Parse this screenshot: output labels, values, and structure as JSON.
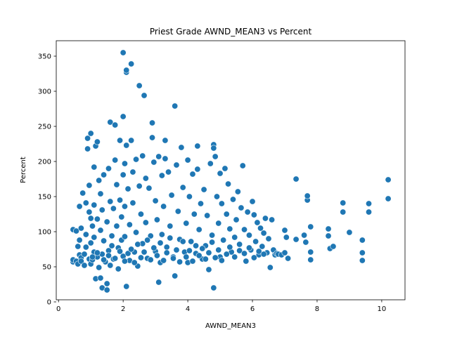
{
  "chart_data": {
    "type": "scatter",
    "title": "Priest Grade AWND_MEAN3 vs Percent",
    "xlabel": "AWND_MEAN3",
    "ylabel": "Percent",
    "xlim": [
      -0.07,
      10.72
    ],
    "ylim": [
      3,
      372
    ],
    "xticks": [
      0,
      2,
      4,
      6,
      8,
      10
    ],
    "yticks": [
      0,
      50,
      100,
      150,
      200,
      250,
      300,
      350
    ],
    "grid": false,
    "legend": "none",
    "marker_color": "#1f77b4",
    "marker_edge": "#ffffff",
    "series": [
      {
        "points": [
          [
            0.45,
            57
          ],
          [
            0.45,
            60
          ],
          [
            0.45,
            103
          ],
          [
            0.55,
            58
          ],
          [
            0.55,
            101
          ],
          [
            0.6,
            54
          ],
          [
            0.6,
            79
          ],
          [
            0.65,
            67
          ],
          [
            0.65,
            88
          ],
          [
            0.65,
            136
          ],
          [
            0.7,
            105
          ],
          [
            0.7,
            63
          ],
          [
            0.7,
            58
          ],
          [
            0.75,
            155
          ],
          [
            0.8,
            68
          ],
          [
            0.8,
            52
          ],
          [
            0.85,
            96
          ],
          [
            0.85,
            78
          ],
          [
            0.85,
            141
          ],
          [
            0.9,
            218
          ],
          [
            0.9,
            233
          ],
          [
            0.95,
            128
          ],
          [
            0.95,
            166
          ],
          [
            0.95,
            61
          ],
          [
            1.0,
            240
          ],
          [
            1.0,
            119
          ],
          [
            1.0,
            84
          ],
          [
            1.0,
            54
          ],
          [
            1.05,
            108
          ],
          [
            1.05,
            60
          ],
          [
            1.1,
            192
          ],
          [
            1.1,
            138
          ],
          [
            1.1,
            92
          ],
          [
            1.1,
            71
          ],
          [
            1.15,
            33
          ],
          [
            1.15,
            222
          ],
          [
            1.2,
            228
          ],
          [
            1.2,
            64
          ],
          [
            1.2,
            118
          ],
          [
            1.25,
            173
          ],
          [
            1.25,
            49
          ],
          [
            1.3,
            34
          ],
          [
            1.3,
            154
          ],
          [
            1.3,
            102
          ],
          [
            1.35,
            20
          ],
          [
            1.35,
            131
          ],
          [
            1.35,
            68
          ],
          [
            1.4,
            181
          ],
          [
            1.4,
            87
          ],
          [
            1.45,
            57
          ],
          [
            1.5,
            17
          ],
          [
            1.5,
            26
          ],
          [
            1.5,
            114
          ],
          [
            1.55,
            190
          ],
          [
            1.55,
            73
          ],
          [
            1.6,
            256
          ],
          [
            1.6,
            143
          ],
          [
            1.6,
            52
          ],
          [
            1.65,
            94
          ],
          [
            1.7,
            133
          ],
          [
            1.7,
            61
          ],
          [
            1.75,
            252
          ],
          [
            1.75,
            202
          ],
          [
            1.8,
            167
          ],
          [
            1.8,
            108
          ],
          [
            1.85,
            77
          ],
          [
            1.85,
            47
          ],
          [
            1.9,
            230
          ],
          [
            1.9,
            145
          ],
          [
            1.95,
            121
          ],
          [
            1.95,
            88
          ],
          [
            2.0,
            355
          ],
          [
            2.0,
            264
          ],
          [
            2.0,
            181
          ],
          [
            2.0,
            65
          ],
          [
            2.05,
            197
          ],
          [
            2.05,
            136
          ],
          [
            2.05,
            93
          ],
          [
            2.1,
            22
          ],
          [
            2.1,
            327
          ],
          [
            2.1,
            330
          ],
          [
            2.1,
            223
          ],
          [
            2.15,
            161
          ],
          [
            2.2,
            110
          ],
          [
            2.2,
            59
          ],
          [
            2.25,
            339
          ],
          [
            2.25,
            230
          ],
          [
            2.3,
            185
          ],
          [
            2.3,
            141
          ],
          [
            2.35,
            71
          ],
          [
            2.4,
            203
          ],
          [
            2.4,
            99
          ],
          [
            2.45,
            51
          ],
          [
            2.5,
            308
          ],
          [
            2.5,
            165
          ],
          [
            2.55,
            125
          ],
          [
            2.6,
            208
          ],
          [
            2.6,
            83
          ],
          [
            2.65,
            294
          ],
          [
            2.7,
            176
          ],
          [
            2.7,
            113
          ],
          [
            2.75,
            62
          ],
          [
            2.8,
            162
          ],
          [
            2.85,
            94
          ],
          [
            2.9,
            255
          ],
          [
            2.9,
            234
          ],
          [
            2.95,
            199
          ],
          [
            3.0,
            144
          ],
          [
            3.0,
            72
          ],
          [
            3.05,
            117
          ],
          [
            3.1,
            28
          ],
          [
            3.1,
            207
          ],
          [
            3.15,
            56
          ],
          [
            3.2,
            180
          ],
          [
            3.2,
            96
          ],
          [
            3.25,
            136
          ],
          [
            3.3,
            230
          ],
          [
            3.3,
            204
          ],
          [
            3.35,
            78
          ],
          [
            3.4,
            185
          ],
          [
            3.45,
            108
          ],
          [
            3.5,
            152
          ],
          [
            3.55,
            64
          ],
          [
            3.6,
            279
          ],
          [
            3.6,
            37
          ],
          [
            3.65,
            195
          ],
          [
            3.7,
            129
          ],
          [
            3.75,
            89
          ],
          [
            3.8,
            220
          ],
          [
            3.85,
            163
          ],
          [
            3.9,
            71
          ],
          [
            3.95,
            112
          ],
          [
            4.0,
            202
          ],
          [
            4.0,
            56
          ],
          [
            4.05,
            150
          ],
          [
            4.1,
            86
          ],
          [
            4.15,
            182
          ],
          [
            4.2,
            125
          ],
          [
            4.25,
            69
          ],
          [
            4.3,
            222
          ],
          [
            4.3,
            189
          ],
          [
            4.35,
            103
          ],
          [
            4.4,
            140
          ],
          [
            4.45,
            61
          ],
          [
            4.5,
            160
          ],
          [
            4.55,
            80
          ],
          [
            4.6,
            123
          ],
          [
            4.65,
            46
          ],
          [
            4.7,
            197
          ],
          [
            4.75,
            95
          ],
          [
            4.8,
            20
          ],
          [
            4.8,
            224
          ],
          [
            4.8,
            219
          ],
          [
            4.85,
            207
          ],
          [
            4.9,
            150
          ],
          [
            4.95,
            112
          ],
          [
            5.0,
            183
          ],
          [
            5.0,
            64
          ],
          [
            5.05,
            140
          ],
          [
            5.1,
            88
          ],
          [
            5.15,
            190
          ],
          [
            5.2,
            125
          ],
          [
            5.25,
            168
          ],
          [
            5.3,
            104
          ],
          [
            5.35,
            71
          ],
          [
            5.4,
            146
          ],
          [
            5.45,
            92
          ],
          [
            5.5,
            117
          ],
          [
            5.55,
            157
          ],
          [
            5.6,
            82
          ],
          [
            5.65,
            134
          ],
          [
            5.7,
            194
          ],
          [
            5.75,
            103
          ],
          [
            5.8,
            58
          ],
          [
            5.85,
            128
          ],
          [
            5.9,
            95
          ],
          [
            5.95,
            74
          ],
          [
            6.0,
            143
          ],
          [
            6.05,
            124
          ],
          [
            6.1,
            86
          ],
          [
            6.15,
            113
          ],
          [
            6.2,
            67
          ],
          [
            6.25,
            105
          ],
          [
            6.3,
            79
          ],
          [
            6.35,
            98
          ],
          [
            6.4,
            119
          ],
          [
            6.45,
            70
          ],
          [
            6.5,
            90
          ],
          [
            6.55,
            49
          ],
          [
            6.6,
            117
          ],
          [
            6.65,
            74
          ],
          [
            6.7,
            67
          ],
          [
            6.75,
            69
          ],
          [
            6.8,
            68
          ],
          [
            6.9,
            67
          ],
          [
            7.0,
            102
          ],
          [
            7.0,
            70
          ],
          [
            7.05,
            92
          ],
          [
            7.1,
            62
          ],
          [
            7.35,
            175
          ],
          [
            7.35,
            89
          ],
          [
            7.6,
            95
          ],
          [
            7.65,
            85
          ],
          [
            7.7,
            145
          ],
          [
            7.7,
            151
          ],
          [
            7.8,
            107
          ],
          [
            7.8,
            60
          ],
          [
            7.8,
            71
          ],
          [
            8.35,
            104
          ],
          [
            8.35,
            94
          ],
          [
            8.4,
            76
          ],
          [
            8.5,
            79
          ],
          [
            8.8,
            128
          ],
          [
            8.8,
            141
          ],
          [
            9.0,
            99
          ],
          [
            9.4,
            88
          ],
          [
            9.4,
            70
          ],
          [
            9.4,
            59
          ],
          [
            9.6,
            140
          ],
          [
            9.6,
            128
          ],
          [
            10.2,
            174
          ],
          [
            10.2,
            147
          ],
          [
            1.05,
            64
          ],
          [
            1.2,
            70
          ],
          [
            1.4,
            60
          ],
          [
            1.55,
            66
          ],
          [
            1.65,
            80
          ],
          [
            1.75,
            62
          ],
          [
            1.9,
            72
          ],
          [
            2.05,
            58
          ],
          [
            2.15,
            69
          ],
          [
            2.25,
            75
          ],
          [
            2.35,
            56
          ],
          [
            2.45,
            82
          ],
          [
            2.55,
            63
          ],
          [
            2.65,
            71
          ],
          [
            2.75,
            88
          ],
          [
            2.85,
            60
          ],
          [
            2.95,
            77
          ],
          [
            3.05,
            66
          ],
          [
            3.15,
            84
          ],
          [
            3.25,
            59
          ],
          [
            3.35,
            70
          ],
          [
            3.45,
            91
          ],
          [
            3.55,
            62
          ],
          [
            3.65,
            74
          ],
          [
            3.75,
            57
          ],
          [
            3.85,
            86
          ],
          [
            3.95,
            64
          ],
          [
            4.05,
            73
          ],
          [
            4.15,
            58
          ],
          [
            4.25,
            80
          ],
          [
            4.35,
            66
          ],
          [
            4.45,
            76
          ],
          [
            4.55,
            61
          ],
          [
            4.65,
            70
          ],
          [
            4.75,
            85
          ],
          [
            4.85,
            63
          ],
          [
            4.95,
            74
          ],
          [
            5.05,
            59
          ],
          [
            5.2,
            68
          ],
          [
            5.3,
            78
          ],
          [
            5.45,
            64
          ],
          [
            5.6,
            73
          ],
          [
            5.75,
            69
          ],
          [
            5.9,
            77
          ],
          [
            6.05,
            63
          ],
          [
            6.2,
            72
          ],
          [
            6.35,
            68
          ]
        ]
      }
    ]
  }
}
